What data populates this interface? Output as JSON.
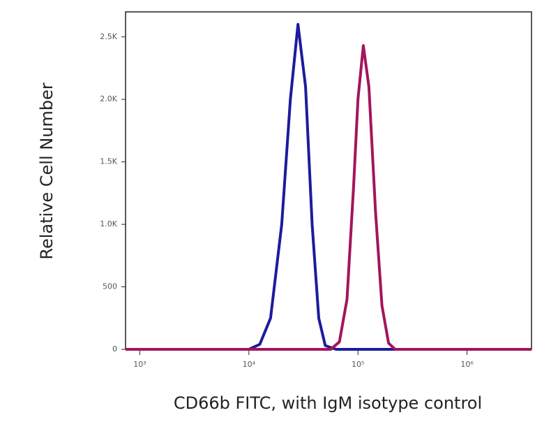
{
  "chart_data": {
    "type": "line",
    "x_label": "CD66b FITC, with IgM isotype control",
    "y_label": "Relative Cell Number",
    "xscale": "log",
    "xlim": [
      740,
      3900000
    ],
    "ylim": [
      0,
      2700
    ],
    "xticks": [
      {
        "value": 1000,
        "label": "10³"
      },
      {
        "value": 10000,
        "label": "10⁴"
      },
      {
        "value": 100000,
        "label": "10⁵"
      },
      {
        "value": 1000000,
        "label": "10⁶"
      }
    ],
    "yticks": [
      0,
      500,
      {
        "value": 1000,
        "label": "1.0K"
      },
      {
        "value": 1500,
        "label": "1.5K"
      },
      {
        "value": 2000,
        "label": "2.0K"
      },
      {
        "value": 2500,
        "label": "2.5K"
      }
    ],
    "series": [
      {
        "color": "#1c1c9c",
        "x": [
          740,
          10000,
          12600,
          15800,
          20000,
          24000,
          28200,
          33100,
          38000,
          43700,
          50100,
          63100,
          3900000
        ],
        "values": [
          0,
          0,
          40,
          250,
          1000,
          2000,
          2600,
          2100,
          1000,
          250,
          30,
          0,
          0
        ]
      },
      {
        "color": "#a3155c",
        "x": [
          740,
          56200,
          67600,
          79400,
          91200,
          100000,
          112000,
          126000,
          145000,
          166000,
          191000,
          219000,
          3900000
        ],
        "values": [
          0,
          0,
          60,
          400,
          1300,
          2000,
          2430,
          2100,
          1100,
          350,
          50,
          0,
          0
        ]
      }
    ]
  }
}
